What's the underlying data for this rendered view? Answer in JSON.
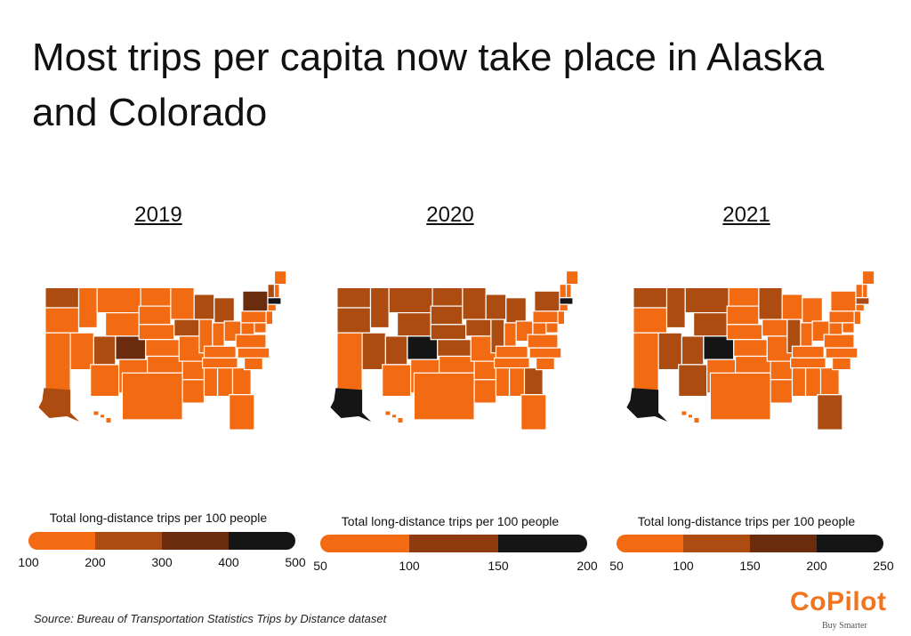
{
  "title": "Most trips per capita now take place in Alaska and Colorado",
  "source": "Source:  Bureau of Transportation Statistics Trips by Distance dataset",
  "logo": {
    "word": "CoPilot",
    "tagline": "Buy Smarter"
  },
  "colors": {
    "c1": "#f26a12",
    "c2": "#ac4c10",
    "c3": "#6b2c0e",
    "c4": "#151515",
    "border": "#ffffff"
  },
  "panels": [
    {
      "year": "2019",
      "legend_title": "Total long-distance trips per 100 people",
      "legend_colors": [
        "#f26a12",
        "#ac4c10",
        "#6b2c0e",
        "#151515"
      ],
      "ticks": [
        "100",
        "200",
        "300",
        "400",
        "500"
      ],
      "highlight_states": {
        "Colorado": "c3",
        "Alaska": "c2",
        "Washington": "c2",
        "Wisconsin": "c2",
        "Michigan": "c2",
        "Utah": "c2",
        "Iowa": "c2",
        "Vermont": "c2",
        "New York": "c3",
        "Massachusetts": "c4"
      }
    },
    {
      "year": "2020",
      "legend_title": "Total long-distance trips per 100 people",
      "legend_colors": [
        "#f26a12",
        "#8e3b10",
        "#151515"
      ],
      "ticks": [
        "50",
        "100",
        "150",
        "200"
      ],
      "highlight_states": {
        "Colorado": "c4",
        "Alaska": "c4",
        "Washington": "c2",
        "Oregon": "c2",
        "Montana": "c2",
        "Idaho": "c2",
        "Wyoming": "c2",
        "North Dakota": "c2",
        "South Dakota": "c2",
        "Minnesota": "c2",
        "Nebraska": "c2",
        "Nevada": "c2",
        "Utah": "c2",
        "Kansas": "c2",
        "Iowa": "c2",
        "Wisconsin": "c2",
        "Michigan": "c2",
        "Illinois": "c2",
        "Georgia": "c2",
        "New York": "c2",
        "Massachusetts": "c4"
      }
    },
    {
      "year": "2021",
      "legend_title": "Total long-distance trips per 100 people",
      "legend_colors": [
        "#f26a12",
        "#ac4c10",
        "#6b2c0e",
        "#151515"
      ],
      "ticks": [
        "50",
        "100",
        "150",
        "200",
        "250"
      ],
      "highlight_states": {
        "Colorado": "c4",
        "Alaska": "c4",
        "Washington": "c2",
        "Montana": "c2",
        "Idaho": "c2",
        "Wyoming": "c2",
        "Minnesota": "c2",
        "Nevada": "c2",
        "Utah": "c2",
        "Arizona": "c2",
        "Illinois": "c2",
        "Florida": "c2",
        "Massachusetts": "c2"
      }
    }
  ]
}
